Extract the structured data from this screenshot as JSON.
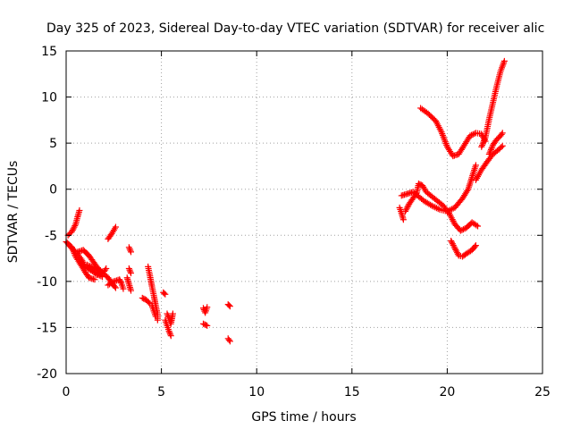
{
  "chart_data": {
    "type": "scatter",
    "title": "Day 325 of 2023, Sidereal Day-to-day VTEC variation (SDTVAR) for receiver alic",
    "xlabel": "GPS time / hours",
    "ylabel": "SDTVAR / TECUs",
    "xlim": [
      0,
      25
    ],
    "ylim": [
      -20,
      15
    ],
    "x_ticks": [
      "0",
      "5",
      "10",
      "15",
      "20",
      "25"
    ],
    "y_ticks": [
      "-20",
      "-15",
      "-10",
      "-5",
      "0",
      "5",
      "10",
      "15"
    ],
    "x_tick_values": [
      0,
      5,
      10,
      15,
      20,
      25
    ],
    "y_tick_values": [
      -20,
      -15,
      -10,
      -5,
      0,
      5,
      10,
      15
    ],
    "grid": true,
    "marker": "plus",
    "series": [
      {
        "color": "#ff0000",
        "tracks": [
          [
            [
              0.1,
              -5.0
            ],
            [
              0.3,
              -4.6
            ],
            [
              0.5,
              -3.8
            ],
            [
              0.6,
              -3.0
            ],
            [
              0.7,
              -2.3
            ]
          ],
          [
            [
              0.0,
              -5.7
            ],
            [
              0.3,
              -6.3
            ],
            [
              0.5,
              -7.3
            ],
            [
              0.8,
              -8.3
            ],
            [
              1.0,
              -9.0
            ],
            [
              1.2,
              -9.6
            ],
            [
              1.5,
              -9.8
            ]
          ],
          [
            [
              0.2,
              -6.2
            ],
            [
              0.5,
              -6.8
            ],
            [
              0.8,
              -7.6
            ],
            [
              1.0,
              -8.4
            ],
            [
              1.3,
              -8.8
            ],
            [
              1.6,
              -9.2
            ],
            [
              1.9,
              -9.5
            ]
          ],
          [
            [
              0.6,
              -6.8
            ],
            [
              0.9,
              -6.6
            ],
            [
              1.2,
              -7.2
            ],
            [
              1.4,
              -7.8
            ],
            [
              1.6,
              -8.4
            ],
            [
              1.8,
              -8.8
            ]
          ],
          [
            [
              1.1,
              -8.2
            ],
            [
              1.4,
              -8.5
            ],
            [
              1.7,
              -8.8
            ],
            [
              2.0,
              -9.2
            ],
            [
              2.2,
              -9.6
            ],
            [
              2.4,
              -10.2
            ],
            [
              2.6,
              -10.7
            ]
          ],
          [
            [
              1.6,
              -9.3
            ],
            [
              1.8,
              -9.0
            ],
            [
              2.0,
              -8.9
            ],
            [
              2.1,
              -8.6
            ]
          ],
          [
            [
              2.2,
              -5.4
            ],
            [
              2.4,
              -4.8
            ],
            [
              2.6,
              -4.1
            ]
          ],
          [
            [
              2.2,
              -10.4
            ],
            [
              2.5,
              -10.0
            ],
            [
              2.8,
              -9.8
            ],
            [
              2.9,
              -10.2
            ],
            [
              3.0,
              -10.8
            ]
          ],
          [
            [
              3.2,
              -9.6
            ],
            [
              3.3,
              -10.3
            ],
            [
              3.4,
              -11.0
            ]
          ],
          [
            [
              3.3,
              -6.3
            ],
            [
              3.4,
              -6.8
            ]
          ],
          [
            [
              3.3,
              -8.6
            ],
            [
              3.4,
              -9.1
            ]
          ],
          [
            [
              4.0,
              -11.8
            ],
            [
              4.2,
              -12.0
            ],
            [
              4.4,
              -12.4
            ]
          ],
          [
            [
              4.3,
              -8.4
            ],
            [
              4.4,
              -9.4
            ],
            [
              4.5,
              -10.5
            ],
            [
              4.6,
              -11.5
            ],
            [
              4.7,
              -12.6
            ],
            [
              4.8,
              -13.6
            ],
            [
              4.8,
              -14.2
            ]
          ],
          [
            [
              4.5,
              -12.6
            ],
            [
              4.6,
              -13.2
            ],
            [
              4.7,
              -13.8
            ]
          ],
          [
            [
              5.1,
              -11.2
            ],
            [
              5.2,
              -11.4
            ]
          ],
          [
            [
              5.2,
              -14.2
            ],
            [
              5.3,
              -14.8
            ],
            [
              5.4,
              -15.4
            ],
            [
              5.5,
              -15.9
            ]
          ],
          [
            [
              5.3,
              -13.5
            ],
            [
              5.4,
              -14.0
            ],
            [
              5.5,
              -14.6
            ],
            [
              5.6,
              -13.5
            ]
          ],
          [
            [
              7.2,
              -12.9
            ],
            [
              7.3,
              -13.4
            ],
            [
              7.4,
              -12.8
            ]
          ],
          [
            [
              7.2,
              -14.6
            ],
            [
              7.4,
              -14.8
            ]
          ],
          [
            [
              8.5,
              -12.5
            ],
            [
              8.6,
              -12.7
            ]
          ],
          [
            [
              8.5,
              -16.2
            ],
            [
              8.6,
              -16.5
            ]
          ],
          [
            [
              17.5,
              -2.0
            ],
            [
              17.6,
              -2.6
            ],
            [
              17.7,
              -3.3
            ]
          ],
          [
            [
              17.6,
              -0.7
            ],
            [
              17.9,
              -0.5
            ],
            [
              18.2,
              -0.3
            ],
            [
              18.5,
              -0.8
            ],
            [
              18.8,
              -1.3
            ],
            [
              19.2,
              -1.8
            ],
            [
              19.6,
              -2.2
            ],
            [
              20.0,
              -2.4
            ],
            [
              20.4,
              -2.0
            ],
            [
              20.8,
              -1.0
            ],
            [
              21.1,
              0.0
            ],
            [
              21.3,
              1.3
            ],
            [
              21.5,
              2.6
            ]
          ],
          [
            [
              17.8,
              -2.4
            ],
            [
              18.0,
              -1.6
            ],
            [
              18.2,
              -1.0
            ],
            [
              18.4,
              -0.4
            ],
            [
              18.5,
              0.6
            ],
            [
              18.7,
              0.4
            ],
            [
              18.9,
              -0.3
            ],
            [
              19.2,
              -0.8
            ],
            [
              19.5,
              -1.3
            ],
            [
              19.8,
              -1.8
            ],
            [
              20.1,
              -2.6
            ],
            [
              20.4,
              -3.8
            ],
            [
              20.7,
              -4.5
            ],
            [
              21.0,
              -4.2
            ],
            [
              21.3,
              -3.6
            ],
            [
              21.6,
              -4.0
            ]
          ],
          [
            [
              18.6,
              8.8
            ],
            [
              19.0,
              8.2
            ],
            [
              19.4,
              7.4
            ],
            [
              19.7,
              6.2
            ],
            [
              20.0,
              4.6
            ],
            [
              20.3,
              3.6
            ],
            [
              20.6,
              3.8
            ],
            [
              20.9,
              4.8
            ],
            [
              21.2,
              5.8
            ],
            [
              21.5,
              6.1
            ],
            [
              21.8,
              6.0
            ],
            [
              22.0,
              5.2
            ]
          ],
          [
            [
              20.2,
              -5.6
            ],
            [
              20.4,
              -6.4
            ],
            [
              20.6,
              -7.2
            ],
            [
              20.8,
              -7.3
            ],
            [
              21.0,
              -7.0
            ],
            [
              21.3,
              -6.6
            ],
            [
              21.5,
              -6.1
            ]
          ],
          [
            [
              21.5,
              1.0
            ],
            [
              21.8,
              2.1
            ],
            [
              22.1,
              3.0
            ],
            [
              22.4,
              3.8
            ],
            [
              22.7,
              4.3
            ],
            [
              22.9,
              4.7
            ]
          ],
          [
            [
              21.8,
              4.6
            ],
            [
              22.0,
              5.6
            ],
            [
              22.2,
              7.6
            ],
            [
              22.4,
              9.4
            ],
            [
              22.6,
              11.2
            ],
            [
              22.8,
              12.8
            ],
            [
              23.0,
              13.9
            ]
          ],
          [
            [
              22.2,
              3.8
            ],
            [
              22.4,
              4.8
            ],
            [
              22.6,
              5.4
            ],
            [
              22.8,
              5.8
            ],
            [
              22.9,
              6.1
            ]
          ]
        ]
      }
    ]
  }
}
